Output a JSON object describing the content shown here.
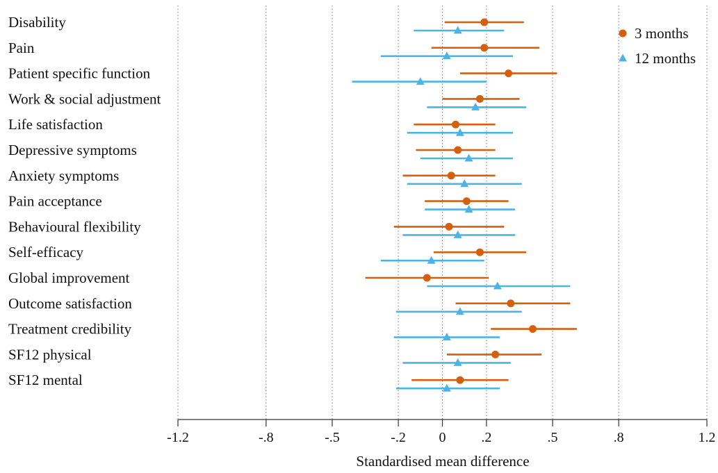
{
  "chart_data": {
    "type": "scatter",
    "subtype": "forest-plot",
    "xlabel": "Standardised mean difference",
    "xlim": [
      -1.2,
      1.2
    ],
    "xticks": [
      -1.2,
      -0.8,
      -0.5,
      -0.2,
      0,
      0.2,
      0.5,
      0.8,
      1.2
    ],
    "xtick_labels": [
      "-1.2",
      "-.8",
      "-.5",
      "-.2",
      "0",
      ".2",
      ".5",
      ".8",
      "1.2"
    ],
    "grid": "vertical dotted",
    "legend_position": "top-right",
    "categories": [
      "Disability",
      "Pain",
      "Patient specific function",
      "Work & social adjustment",
      "Life satisfaction",
      "Depressive symptoms",
      "Anxiety symptoms",
      "Pain acceptance",
      "Behavioural flexibility",
      "Self-efficacy",
      "Global improvement",
      "Outcome satisfaction",
      "Treatment credibility",
      "SF12 physical",
      "SF12 mental"
    ],
    "series": [
      {
        "name": "3 months",
        "marker": "circle",
        "color": "#d35f0f",
        "estimate": [
          0.19,
          0.19,
          0.3,
          0.17,
          0.06,
          0.07,
          0.04,
          0.11,
          0.03,
          0.17,
          -0.07,
          0.31,
          0.41,
          0.24,
          0.08
        ],
        "lower": [
          0.01,
          -0.05,
          0.08,
          0.0,
          -0.13,
          -0.12,
          -0.18,
          -0.08,
          -0.22,
          -0.04,
          -0.35,
          0.06,
          0.22,
          0.02,
          -0.14
        ],
        "upper": [
          0.37,
          0.44,
          0.52,
          0.35,
          0.24,
          0.24,
          0.24,
          0.3,
          0.28,
          0.38,
          0.21,
          0.58,
          0.61,
          0.45,
          0.3
        ]
      },
      {
        "name": "12 months",
        "marker": "triangle",
        "color": "#4db3e6",
        "estimate": [
          0.07,
          0.02,
          -0.1,
          0.15,
          0.08,
          0.12,
          0.1,
          0.12,
          0.07,
          -0.05,
          0.25,
          0.08,
          0.02,
          0.07,
          0.02
        ],
        "lower": [
          -0.13,
          -0.28,
          -0.41,
          -0.07,
          -0.16,
          -0.1,
          -0.16,
          -0.08,
          -0.18,
          -0.28,
          -0.07,
          -0.21,
          -0.22,
          -0.18,
          -0.21
        ],
        "upper": [
          0.28,
          0.32,
          0.2,
          0.38,
          0.32,
          0.32,
          0.36,
          0.33,
          0.33,
          0.19,
          0.58,
          0.36,
          0.26,
          0.31,
          0.26
        ]
      }
    ]
  }
}
